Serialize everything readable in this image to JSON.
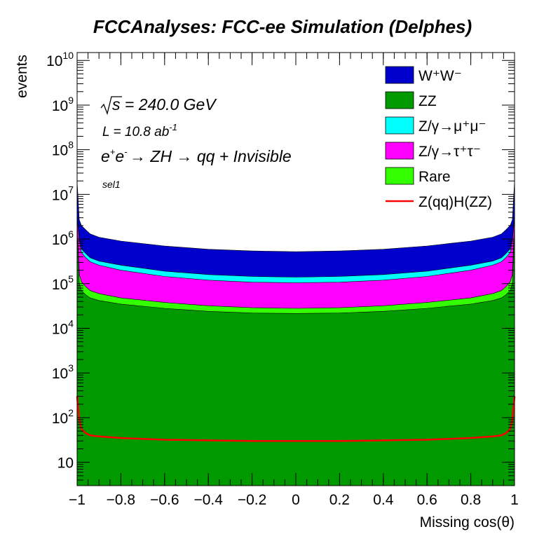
{
  "chart_data": {
    "type": "area",
    "title": "FCCAnalyses: FCC-ee Simulation (Delphes)",
    "xlabel": "Missing cos(θ)",
    "ylabel": "events",
    "xlim": [
      -1,
      1
    ],
    "ylim": [
      3,
      15000000000
    ],
    "y_scale": "log",
    "stacked": true,
    "annotations": {
      "sqrt_s": "s = 240.0 GeV",
      "lumi": "L = 10.8 ab",
      "lumi_exp": "-1",
      "process": "→ ZH → qq + Invisible",
      "selection": "sel1"
    },
    "x_ticks": [
      -1,
      -0.8,
      -0.6,
      -0.4,
      -0.2,
      0,
      0.2,
      0.4,
      0.6,
      0.8,
      1
    ],
    "x_tick_labels": [
      "−1",
      "−0.8",
      "−0.6",
      "−0.4",
      "−0.2",
      "0",
      "0.2",
      "0.4",
      "0.6",
      "0.8",
      "1"
    ],
    "y_ticks": [
      {
        "value": 10,
        "base": "10",
        "exp": ""
      },
      {
        "value": 100,
        "base": "10",
        "exp": "2"
      },
      {
        "value": 1000,
        "base": "10",
        "exp": "3"
      },
      {
        "value": 10000,
        "base": "10",
        "exp": "4"
      },
      {
        "value": 100000,
        "base": "10",
        "exp": "5"
      },
      {
        "value": 1000000,
        "base": "10",
        "exp": "6"
      },
      {
        "value": 10000000,
        "base": "10",
        "exp": "7"
      },
      {
        "value": 100000000,
        "base": "10",
        "exp": "8"
      },
      {
        "value": 1000000000,
        "base": "10",
        "exp": "9"
      },
      {
        "value": 10000000000,
        "base": "10",
        "exp": "10"
      }
    ],
    "legend_position": "top-right",
    "x": [
      -1.0,
      -0.99,
      -0.98,
      -0.96,
      -0.94,
      -0.9,
      -0.8,
      -0.6,
      -0.4,
      -0.2,
      0.0,
      0.2,
      0.4,
      0.6,
      0.8,
      0.9,
      0.94,
      0.96,
      0.98,
      0.99,
      1.0
    ],
    "series": [
      {
        "name": "ZZ",
        "color": "#009900",
        "stack_top": [
          2000000,
          100000,
          70000,
          56000,
          48000,
          42000,
          35000,
          28000,
          24000,
          22000,
          21500,
          22000,
          24000,
          28000,
          35000,
          42000,
          48000,
          56000,
          70000,
          100000,
          2000000
        ]
      },
      {
        "name": "Rare",
        "color": "#33ff00",
        "stack_top": [
          2100000,
          160000,
          110000,
          85000,
          70000,
          60000,
          48000,
          38000,
          32000,
          29000,
          28000,
          29000,
          32000,
          38000,
          48000,
          60000,
          70000,
          85000,
          110000,
          160000,
          2100000
        ]
      },
      {
        "name": "Z/γ→τ⁺τ⁻",
        "color": "#ff00ff",
        "stack_top": [
          3000000,
          900000,
          500000,
          380000,
          310000,
          260000,
          200000,
          145000,
          120000,
          108000,
          105000,
          108000,
          120000,
          145000,
          200000,
          260000,
          310000,
          380000,
          500000,
          900000,
          3000000
        ]
      },
      {
        "name": "Z/γ→μ⁺μ⁻",
        "color": "#00ffff",
        "stack_top": [
          3500000,
          1000000,
          600000,
          470000,
          380000,
          320000,
          260000,
          190000,
          160000,
          145000,
          140000,
          145000,
          160000,
          190000,
          260000,
          320000,
          380000,
          470000,
          600000,
          1000000,
          3500000
        ]
      },
      {
        "name": "W⁺W⁻",
        "color": "#0000cc",
        "stack_top": [
          20000000,
          2700000,
          2000000,
          1600000,
          1300000,
          1100000,
          900000,
          700000,
          590000,
          540000,
          520000,
          540000,
          590000,
          700000,
          900000,
          1100000,
          1300000,
          1600000,
          2000000,
          2700000,
          20000000
        ]
      },
      {
        "name": "Z(qq)H(ZZ)",
        "color": "#ff0000",
        "type": "line",
        "values": [
          300,
          90,
          55,
          45,
          40,
          38,
          35,
          32,
          31,
          30,
          30,
          30,
          31,
          32,
          35,
          38,
          40,
          45,
          55,
          90,
          300
        ]
      }
    ]
  }
}
